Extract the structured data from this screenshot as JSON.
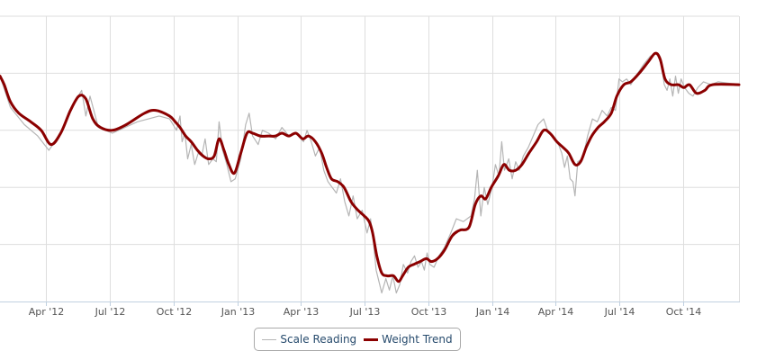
{
  "colors": {
    "scale": "#b5b5b5",
    "trend": "#8b0000",
    "grid": "#dedede",
    "axis": "#c0d0e0",
    "legend_text": "#274b6d"
  },
  "legend": {
    "scale_label": "Scale Reading",
    "trend_label": "Weight Trend"
  },
  "chart_data": {
    "type": "line",
    "title": "",
    "xlabel": "",
    "ylabel": "",
    "x_range": [
      "2012-01-26",
      "2014-12-20"
    ],
    "y_range": [
      0,
      10
    ],
    "y_labels_visible": false,
    "grid": true,
    "legend_position": "bottom-center",
    "x_ticks": [
      {
        "date": "2012-04-01",
        "label": "Apr '12"
      },
      {
        "date": "2012-07-01",
        "label": "Jul '12"
      },
      {
        "date": "2012-10-01",
        "label": "Oct '12"
      },
      {
        "date": "2013-01-01",
        "label": "Jan '13"
      },
      {
        "date": "2013-04-01",
        "label": "Apr '13"
      },
      {
        "date": "2013-07-01",
        "label": "Jul '13"
      },
      {
        "date": "2013-10-01",
        "label": "Oct '13"
      },
      {
        "date": "2014-01-01",
        "label": "Jan '14"
      },
      {
        "date": "2014-04-01",
        "label": "Apr '14"
      },
      {
        "date": "2014-07-01",
        "label": "Jul '14"
      },
      {
        "date": "2014-10-01",
        "label": "Oct '14"
      }
    ],
    "series": [
      {
        "name": "Scale Reading",
        "style": "thin-gray",
        "points": [
          [
            "2012-01-26",
            7.9
          ],
          [
            "2012-02-10",
            6.8
          ],
          [
            "2012-03-01",
            6.2
          ],
          [
            "2012-03-20",
            5.8
          ],
          [
            "2012-04-05",
            5.3
          ],
          [
            "2012-04-25",
            6.0
          ],
          [
            "2012-05-12",
            7.0
          ],
          [
            "2012-05-22",
            7.4
          ],
          [
            "2012-05-28",
            6.5
          ],
          [
            "2012-06-03",
            7.2
          ],
          [
            "2012-06-15",
            6.1
          ],
          [
            "2012-07-05",
            5.9
          ],
          [
            "2012-08-10",
            6.3
          ],
          [
            "2012-09-10",
            6.5
          ],
          [
            "2012-09-25",
            6.4
          ],
          [
            "2012-10-05",
            6.0
          ],
          [
            "2012-10-10",
            6.5
          ],
          [
            "2012-10-13",
            5.6
          ],
          [
            "2012-10-17",
            5.9
          ],
          [
            "2012-10-21",
            5.0
          ],
          [
            "2012-10-26",
            5.5
          ],
          [
            "2012-10-31",
            4.8
          ],
          [
            "2012-11-05",
            5.2
          ],
          [
            "2012-11-10",
            5.1
          ],
          [
            "2012-11-15",
            5.7
          ],
          [
            "2012-11-20",
            4.8
          ],
          [
            "2012-11-26",
            5.0
          ],
          [
            "2012-12-01",
            4.9
          ],
          [
            "2012-12-05",
            6.3
          ],
          [
            "2012-12-10",
            5.3
          ],
          [
            "2012-12-16",
            4.8
          ],
          [
            "2012-12-22",
            4.2
          ],
          [
            "2012-12-28",
            4.3
          ],
          [
            "2013-01-05",
            5.0
          ],
          [
            "2013-01-12",
            6.2
          ],
          [
            "2013-01-17",
            6.6
          ],
          [
            "2013-01-22",
            5.8
          ],
          [
            "2013-01-30",
            5.5
          ],
          [
            "2013-02-05",
            6.0
          ],
          [
            "2013-02-14",
            5.9
          ],
          [
            "2013-02-24",
            5.7
          ],
          [
            "2013-03-05",
            6.1
          ],
          [
            "2013-03-15",
            5.8
          ],
          [
            "2013-03-25",
            5.9
          ],
          [
            "2013-04-05",
            5.6
          ],
          [
            "2013-04-10",
            6.0
          ],
          [
            "2013-04-16",
            5.6
          ],
          [
            "2013-04-22",
            5.1
          ],
          [
            "2013-04-28",
            5.4
          ],
          [
            "2013-05-04",
            4.6
          ],
          [
            "2013-05-10",
            4.2
          ],
          [
            "2013-05-16",
            4.0
          ],
          [
            "2013-05-22",
            3.8
          ],
          [
            "2013-05-28",
            4.3
          ],
          [
            "2013-06-03",
            3.5
          ],
          [
            "2013-06-09",
            3.0
          ],
          [
            "2013-06-15",
            3.7
          ],
          [
            "2013-06-21",
            2.9
          ],
          [
            "2013-06-28",
            3.2
          ],
          [
            "2013-07-05",
            2.4
          ],
          [
            "2013-07-10",
            2.9
          ],
          [
            "2013-07-14",
            2.1
          ],
          [
            "2013-07-18",
            1.1
          ],
          [
            "2013-07-22",
            0.7
          ],
          [
            "2013-07-26",
            0.3
          ],
          [
            "2013-08-01",
            0.8
          ],
          [
            "2013-08-06",
            0.4
          ],
          [
            "2013-08-11",
            0.9
          ],
          [
            "2013-08-16",
            0.3
          ],
          [
            "2013-08-21",
            0.6
          ],
          [
            "2013-08-26",
            1.3
          ],
          [
            "2013-09-01",
            1.0
          ],
          [
            "2013-09-06",
            1.4
          ],
          [
            "2013-09-11",
            1.6
          ],
          [
            "2013-09-16",
            1.2
          ],
          [
            "2013-09-21",
            1.4
          ],
          [
            "2013-09-25",
            1.1
          ],
          [
            "2013-09-29",
            1.7
          ],
          [
            "2013-10-03",
            1.3
          ],
          [
            "2013-10-09",
            1.2
          ],
          [
            "2013-10-16",
            1.6
          ],
          [
            "2013-10-24",
            1.9
          ],
          [
            "2013-11-02",
            2.4
          ],
          [
            "2013-11-10",
            2.9
          ],
          [
            "2013-11-20",
            2.8
          ],
          [
            "2013-12-01",
            3.0
          ],
          [
            "2013-12-06",
            3.6
          ],
          [
            "2013-12-10",
            4.6
          ],
          [
            "2013-12-15",
            3.0
          ],
          [
            "2013-12-20",
            4.0
          ],
          [
            "2013-12-25",
            3.4
          ],
          [
            "2013-12-31",
            4.0
          ],
          [
            "2014-01-05",
            4.8
          ],
          [
            "2014-01-10",
            4.4
          ],
          [
            "2014-01-14",
            5.6
          ],
          [
            "2014-01-18",
            4.6
          ],
          [
            "2014-01-24",
            5.0
          ],
          [
            "2014-01-29",
            4.3
          ],
          [
            "2014-02-03",
            4.9
          ],
          [
            "2014-02-08",
            4.6
          ],
          [
            "2014-02-14",
            5.1
          ],
          [
            "2014-02-21",
            5.4
          ],
          [
            "2014-02-28",
            5.8
          ],
          [
            "2014-03-07",
            6.2
          ],
          [
            "2014-03-15",
            6.4
          ],
          [
            "2014-03-22",
            5.9
          ],
          [
            "2014-03-29",
            5.8
          ],
          [
            "2014-04-04",
            5.6
          ],
          [
            "2014-04-10",
            5.2
          ],
          [
            "2014-04-14",
            4.7
          ],
          [
            "2014-04-18",
            5.1
          ],
          [
            "2014-04-22",
            4.3
          ],
          [
            "2014-04-26",
            4.2
          ],
          [
            "2014-04-29",
            3.7
          ],
          [
            "2014-05-03",
            4.9
          ],
          [
            "2014-05-10",
            5.0
          ],
          [
            "2014-05-17",
            5.8
          ],
          [
            "2014-05-24",
            6.4
          ],
          [
            "2014-05-31",
            6.3
          ],
          [
            "2014-06-07",
            6.7
          ],
          [
            "2014-06-14",
            6.5
          ],
          [
            "2014-06-20",
            6.8
          ],
          [
            "2014-06-26",
            6.7
          ],
          [
            "2014-07-01",
            7.8
          ],
          [
            "2014-07-06",
            7.7
          ],
          [
            "2014-07-12",
            7.8
          ],
          [
            "2014-07-18",
            7.6
          ],
          [
            "2014-07-25",
            7.9
          ],
          [
            "2014-08-05",
            8.3
          ],
          [
            "2014-08-15",
            8.6
          ],
          [
            "2014-08-24",
            8.7
          ],
          [
            "2014-08-31",
            8.3
          ],
          [
            "2014-09-04",
            7.6
          ],
          [
            "2014-09-08",
            7.4
          ],
          [
            "2014-09-12",
            7.8
          ],
          [
            "2014-09-16",
            7.2
          ],
          [
            "2014-09-20",
            7.9
          ],
          [
            "2014-09-24",
            7.3
          ],
          [
            "2014-09-28",
            7.8
          ],
          [
            "2014-10-03",
            7.5
          ],
          [
            "2014-10-09",
            7.3
          ],
          [
            "2014-10-15",
            7.2
          ],
          [
            "2014-10-22",
            7.5
          ],
          [
            "2014-10-30",
            7.7
          ],
          [
            "2014-11-10",
            7.6
          ],
          [
            "2014-11-20",
            7.7
          ],
          [
            "2014-12-20",
            7.6
          ]
        ]
      },
      {
        "name": "Weight Trend",
        "style": "thick-red",
        "points": [
          [
            "2012-01-26",
            7.9
          ],
          [
            "2012-02-01",
            7.6
          ],
          [
            "2012-02-10",
            7.0
          ],
          [
            "2012-02-22",
            6.6
          ],
          [
            "2012-03-10",
            6.3
          ],
          [
            "2012-03-25",
            6.0
          ],
          [
            "2012-04-08",
            5.5
          ],
          [
            "2012-04-22",
            5.9
          ],
          [
            "2012-05-06",
            6.7
          ],
          [
            "2012-05-18",
            7.2
          ],
          [
            "2012-05-28",
            7.1
          ],
          [
            "2012-06-07",
            6.4
          ],
          [
            "2012-06-18",
            6.1
          ],
          [
            "2012-07-05",
            6.0
          ],
          [
            "2012-07-25",
            6.2
          ],
          [
            "2012-08-20",
            6.6
          ],
          [
            "2012-09-05",
            6.7
          ],
          [
            "2012-09-25",
            6.5
          ],
          [
            "2012-10-03",
            6.3
          ],
          [
            "2012-10-10",
            6.1
          ],
          [
            "2012-10-18",
            5.8
          ],
          [
            "2012-10-26",
            5.6
          ],
          [
            "2012-11-04",
            5.3
          ],
          [
            "2012-11-12",
            5.1
          ],
          [
            "2012-11-20",
            5.0
          ],
          [
            "2012-11-28",
            5.1
          ],
          [
            "2012-12-05",
            5.7
          ],
          [
            "2012-12-12",
            5.3
          ],
          [
            "2012-12-19",
            4.8
          ],
          [
            "2012-12-27",
            4.5
          ],
          [
            "2013-01-05",
            5.2
          ],
          [
            "2013-01-14",
            5.9
          ],
          [
            "2013-01-22",
            5.9
          ],
          [
            "2013-02-02",
            5.8
          ],
          [
            "2013-02-14",
            5.8
          ],
          [
            "2013-02-24",
            5.8
          ],
          [
            "2013-03-05",
            5.9
          ],
          [
            "2013-03-15",
            5.8
          ],
          [
            "2013-03-25",
            5.9
          ],
          [
            "2013-04-04",
            5.7
          ],
          [
            "2013-04-12",
            5.8
          ],
          [
            "2013-04-22",
            5.6
          ],
          [
            "2013-05-01",
            5.2
          ],
          [
            "2013-05-08",
            4.7
          ],
          [
            "2013-05-15",
            4.3
          ],
          [
            "2013-05-24",
            4.2
          ],
          [
            "2013-06-02",
            4.0
          ],
          [
            "2013-06-12",
            3.5
          ],
          [
            "2013-06-22",
            3.2
          ],
          [
            "2013-07-01",
            3.0
          ],
          [
            "2013-07-08",
            2.8
          ],
          [
            "2013-07-13",
            2.4
          ],
          [
            "2013-07-19",
            1.6
          ],
          [
            "2013-07-26",
            1.0
          ],
          [
            "2013-08-03",
            0.9
          ],
          [
            "2013-08-12",
            0.9
          ],
          [
            "2013-08-19",
            0.7
          ],
          [
            "2013-08-25",
            0.9
          ],
          [
            "2013-09-02",
            1.2
          ],
          [
            "2013-09-10",
            1.3
          ],
          [
            "2013-09-19",
            1.4
          ],
          [
            "2013-09-28",
            1.5
          ],
          [
            "2013-10-05",
            1.4
          ],
          [
            "2013-10-14",
            1.5
          ],
          [
            "2013-10-24",
            1.8
          ],
          [
            "2013-11-04",
            2.3
          ],
          [
            "2013-11-15",
            2.5
          ],
          [
            "2013-11-28",
            2.6
          ],
          [
            "2013-12-07",
            3.4
          ],
          [
            "2013-12-15",
            3.7
          ],
          [
            "2013-12-22",
            3.6
          ],
          [
            "2013-12-30",
            4.0
          ],
          [
            "2014-01-09",
            4.4
          ],
          [
            "2014-01-17",
            4.8
          ],
          [
            "2014-01-25",
            4.6
          ],
          [
            "2014-02-03",
            4.6
          ],
          [
            "2014-02-12",
            4.8
          ],
          [
            "2014-02-22",
            5.2
          ],
          [
            "2014-03-05",
            5.6
          ],
          [
            "2014-03-15",
            6.0
          ],
          [
            "2014-03-24",
            5.9
          ],
          [
            "2014-04-03",
            5.6
          ],
          [
            "2014-04-12",
            5.4
          ],
          [
            "2014-04-20",
            5.2
          ],
          [
            "2014-04-29",
            4.8
          ],
          [
            "2014-05-07",
            4.9
          ],
          [
            "2014-05-15",
            5.4
          ],
          [
            "2014-05-23",
            5.8
          ],
          [
            "2014-06-01",
            6.1
          ],
          [
            "2014-06-10",
            6.3
          ],
          [
            "2014-06-20",
            6.6
          ],
          [
            "2014-06-28",
            7.2
          ],
          [
            "2014-07-08",
            7.6
          ],
          [
            "2014-07-18",
            7.7
          ],
          [
            "2014-07-30",
            8.0
          ],
          [
            "2014-08-12",
            8.4
          ],
          [
            "2014-08-22",
            8.7
          ],
          [
            "2014-08-29",
            8.5
          ],
          [
            "2014-09-05",
            7.8
          ],
          [
            "2014-09-14",
            7.6
          ],
          [
            "2014-09-24",
            7.6
          ],
          [
            "2014-10-02",
            7.5
          ],
          [
            "2014-10-10",
            7.6
          ],
          [
            "2014-10-20",
            7.3
          ],
          [
            "2014-11-01",
            7.4
          ],
          [
            "2014-11-12",
            7.6
          ],
          [
            "2014-12-20",
            7.6
          ]
        ]
      }
    ]
  }
}
